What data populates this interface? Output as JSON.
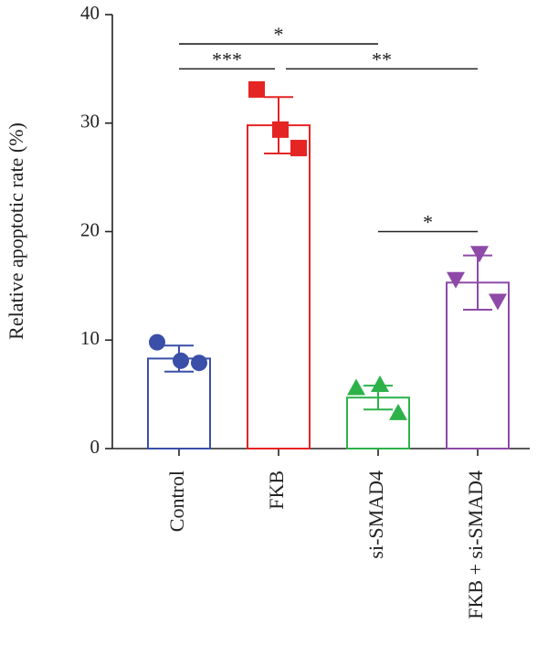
{
  "chart_data": {
    "type": "bar",
    "ylabel": "Relative apoptotic rate (%)",
    "xlabel": "",
    "ylim": [
      0,
      40
    ],
    "yticks": [
      "0",
      "10",
      "20",
      "30",
      "40"
    ],
    "grid": false,
    "categories": [
      "Control",
      "FKB",
      "si-SMAD4",
      "FKB + si-SMAD4"
    ],
    "values": [
      8.3,
      29.8,
      4.7,
      15.3
    ],
    "error_sd": [
      1.2,
      2.6,
      1.1,
      2.5
    ],
    "colors": [
      "#3a4fa8",
      "#e52424",
      "#2db24a",
      "#8e4aa8"
    ],
    "markers": [
      "circle",
      "square",
      "triangle-up",
      "triangle-down"
    ],
    "points": [
      [
        9.8,
        8.1,
        7.9
      ],
      [
        33.1,
        29.4,
        27.7
      ],
      [
        5.6,
        5.9,
        3.3
      ],
      [
        15.6,
        18.0,
        13.6
      ]
    ],
    "significance": [
      {
        "from": 0,
        "to": 2,
        "label": "*",
        "y": 37.3
      },
      {
        "from": 0,
        "to": 1,
        "label": "***",
        "y": 35.0
      },
      {
        "from": 1,
        "to": 3,
        "label": "**",
        "y": 35.0
      },
      {
        "from": 2,
        "to": 3,
        "label": "*",
        "y": 20.0
      }
    ]
  }
}
